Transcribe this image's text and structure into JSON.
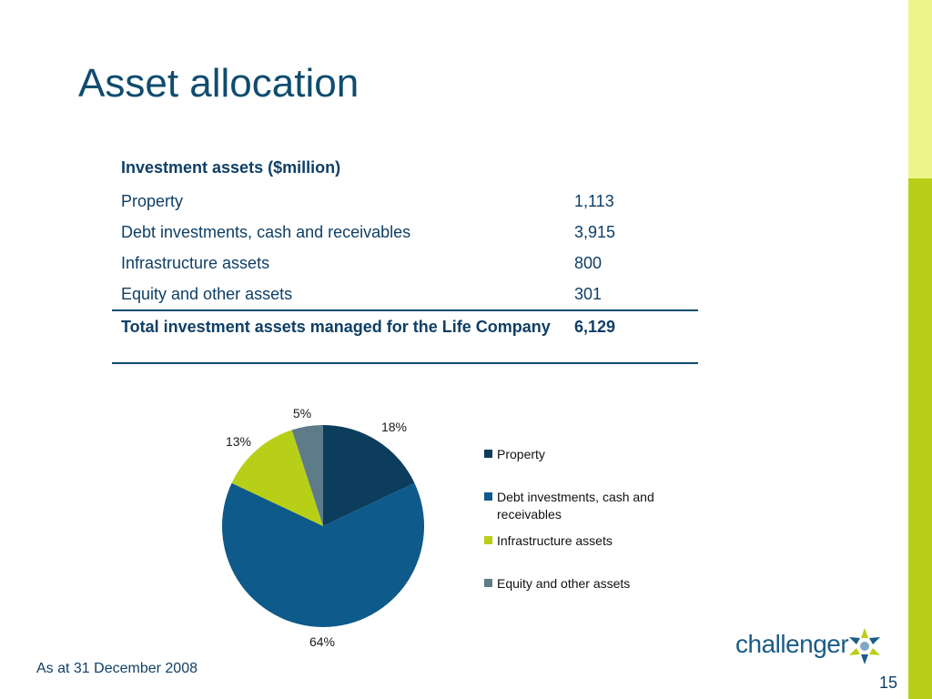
{
  "slide": {
    "title": "Asset allocation",
    "footnote": "As at 31 December 2008",
    "page_number": "15",
    "logo_text": "challenger"
  },
  "table": {
    "header": "Investment assets ($million)",
    "rows": [
      {
        "label": "Property",
        "value": "1,113"
      },
      {
        "label": "Debt investments, cash and receivables",
        "value": "3,915"
      },
      {
        "label": "Infrastructure assets",
        "value": "800"
      },
      {
        "label": "Equity and other assets",
        "value": "301"
      }
    ],
    "total": {
      "label": "Total investment assets managed for the Life Company",
      "value": "6,129"
    }
  },
  "colors": {
    "property": "#0d3d5c",
    "debt": "#0e5a8a",
    "infrastructure": "#b8cf17",
    "equity": "#5e7b8a",
    "accent_light": "#eef58a",
    "accent": "#b8cf17"
  },
  "chart_data": {
    "type": "pie",
    "categories": [
      "Property",
      "Debt investments, cash and receivables",
      "Infrastructure assets",
      "Equity and other assets"
    ],
    "values": [
      18,
      64,
      13,
      5
    ],
    "data_labels": [
      "18%",
      "64%",
      "13%",
      "5%"
    ],
    "legend_position": "right"
  }
}
